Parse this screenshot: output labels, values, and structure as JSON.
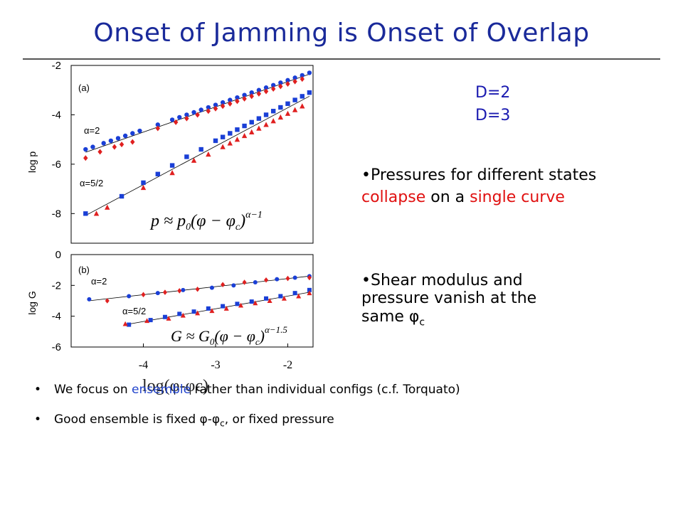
{
  "slide": {
    "title": "Onset of Jamming is Onset of Overlap",
    "legend": [
      {
        "label": "D=2",
        "color": "#1a1ab0"
      },
      {
        "label": "D=3",
        "color": "#1a1ab0"
      }
    ],
    "bullet1": {
      "p1": "•Pressures for different states ",
      "collapse": "collapse",
      "p2": " on a ",
      "single": "single curve"
    },
    "bullet2": {
      "line1": "•Shear modulus and",
      "line2": "pressure vanish at the",
      "line3": "same ",
      "phi": "φ",
      "sub": "c"
    },
    "bottom1": {
      "dot": "•",
      "pre": "We focus on ",
      "ensemble": "ensemble",
      "post": " rather than individual configs (c.f. Torquato)"
    },
    "bottom2": {
      "dot": "•",
      "pre": "Good ensemble is fixed ",
      "phi1": "φ",
      "dash": "-",
      "phi2": "φ",
      "sub": "c",
      "post": ", or fixed pressure"
    }
  },
  "chart_data": [
    {
      "type": "scatter",
      "panel": "(a)",
      "ylabel": "log p",
      "xlim": [
        -5.0,
        -1.65
      ],
      "ylim": [
        -9.2,
        -2.0
      ],
      "yticks": [
        "-2",
        "-4",
        "-6",
        "-8"
      ],
      "annotations": [
        "α=2",
        "α=5/2"
      ],
      "equation": "p ≈ p0(φ − φc)^(α−1)",
      "series": [
        {
          "name": "D=2",
          "group": "α=2",
          "marker": "circle",
          "color": "#1a3fd6",
          "x": [
            -4.8,
            -4.7,
            -4.55,
            -4.45,
            -4.35,
            -4.25,
            -4.15,
            -4.05,
            -3.8,
            -3.6,
            -3.5,
            -3.4,
            -3.3,
            -3.2,
            -3.1,
            -3.0,
            -2.9,
            -2.8,
            -2.7,
            -2.6,
            -2.5,
            -2.4,
            -2.3,
            -2.2,
            -2.1,
            -2.0,
            -1.9,
            -1.8,
            -1.7
          ],
          "y": [
            -5.4,
            -5.3,
            -5.15,
            -5.05,
            -4.95,
            -4.85,
            -4.75,
            -4.65,
            -4.4,
            -4.2,
            -4.1,
            -4.0,
            -3.9,
            -3.8,
            -3.7,
            -3.6,
            -3.5,
            -3.4,
            -3.3,
            -3.2,
            -3.1,
            -3.0,
            -2.9,
            -2.8,
            -2.7,
            -2.6,
            -2.5,
            -2.4,
            -2.3
          ]
        },
        {
          "name": "D=3",
          "group": "α=2",
          "marker": "diamond",
          "color": "#e02020",
          "x": [
            -4.8,
            -4.6,
            -4.4,
            -4.3,
            -4.15,
            -3.8,
            -3.55,
            -3.4,
            -3.25,
            -3.1,
            -3.0,
            -2.9,
            -2.8,
            -2.7,
            -2.6,
            -2.5,
            -2.4,
            -2.3,
            -2.2,
            -2.1,
            -2.0,
            -1.9,
            -1.8
          ],
          "y": [
            -5.75,
            -5.5,
            -5.3,
            -5.2,
            -5.1,
            -4.55,
            -4.3,
            -4.15,
            -4.0,
            -3.85,
            -3.75,
            -3.65,
            -3.55,
            -3.45,
            -3.35,
            -3.25,
            -3.15,
            -3.05,
            -2.95,
            -2.85,
            -2.75,
            -2.65,
            -2.55
          ]
        },
        {
          "name": "D=2",
          "group": "α=5/2",
          "marker": "square",
          "color": "#1a3fd6",
          "x": [
            -4.8,
            -4.3,
            -4.0,
            -3.8,
            -3.6,
            -3.4,
            -3.2,
            -3.0,
            -2.9,
            -2.8,
            -2.7,
            -2.6,
            -2.5,
            -2.4,
            -2.3,
            -2.2,
            -2.1,
            -2.0,
            -1.9,
            -1.8,
            -1.7
          ],
          "y": [
            -8.0,
            -7.3,
            -6.75,
            -6.4,
            -6.05,
            -5.7,
            -5.4,
            -5.05,
            -4.9,
            -4.75,
            -4.6,
            -4.45,
            -4.3,
            -4.15,
            -4.0,
            -3.85,
            -3.7,
            -3.55,
            -3.4,
            -3.25,
            -3.1
          ]
        },
        {
          "name": "D=3",
          "group": "α=5/2",
          "marker": "triangle",
          "color": "#e02020",
          "x": [
            -4.65,
            -4.5,
            -4.0,
            -3.6,
            -3.3,
            -3.1,
            -2.9,
            -2.8,
            -2.7,
            -2.6,
            -2.5,
            -2.4,
            -2.3,
            -2.2,
            -2.1,
            -2.0,
            -1.9,
            -1.8
          ],
          "y": [
            -8.0,
            -7.75,
            -6.95,
            -6.35,
            -5.85,
            -5.6,
            -5.3,
            -5.15,
            -5.0,
            -4.85,
            -4.7,
            -4.55,
            -4.4,
            -4.25,
            -4.1,
            -3.95,
            -3.8,
            -3.65
          ]
        }
      ]
    },
    {
      "type": "scatter",
      "panel": "(b)",
      "ylabel": "log G",
      "xlabel": "log(φ-φc)",
      "xlim": [
        -5.0,
        -1.65
      ],
      "ylim": [
        -6.0,
        0.0
      ],
      "xticks": [
        "-4",
        "-3",
        "-2"
      ],
      "yticks": [
        "0",
        "-2",
        "-4",
        "-6"
      ],
      "annotations": [
        "α=2",
        "α=5/2"
      ],
      "equation": "G ≈ G0(φ − φc)^(α−1.5)",
      "series": [
        {
          "name": "D=2",
          "group": "α=2",
          "marker": "circle",
          "color": "#1a3fd6",
          "x": [
            -4.75,
            -4.2,
            -3.8,
            -3.45,
            -3.05,
            -2.75,
            -2.45,
            -2.15,
            -1.9,
            -1.7
          ],
          "y": [
            -2.9,
            -2.7,
            -2.5,
            -2.3,
            -2.15,
            -2.0,
            -1.8,
            -1.6,
            -1.5,
            -1.4
          ]
        },
        {
          "name": "D=3",
          "group": "α=2",
          "marker": "diamond",
          "color": "#e02020",
          "x": [
            -4.5,
            -4.0,
            -3.7,
            -3.5,
            -3.25,
            -2.9,
            -2.6,
            -2.3,
            -2.0,
            -1.7
          ],
          "y": [
            -3.0,
            -2.6,
            -2.45,
            -2.35,
            -2.25,
            -1.95,
            -1.8,
            -1.65,
            -1.55,
            -1.5
          ]
        },
        {
          "name": "D=2",
          "group": "α=5/2",
          "marker": "square",
          "color": "#1a3fd6",
          "x": [
            -4.2,
            -3.9,
            -3.7,
            -3.5,
            -3.3,
            -3.1,
            -2.9,
            -2.7,
            -2.5,
            -2.3,
            -2.1,
            -1.9,
            -1.7
          ],
          "y": [
            -4.55,
            -4.25,
            -4.05,
            -3.85,
            -3.7,
            -3.5,
            -3.35,
            -3.2,
            -3.05,
            -2.85,
            -2.7,
            -2.5,
            -2.3
          ]
        },
        {
          "name": "D=3",
          "group": "α=5/2",
          "marker": "triangle",
          "color": "#e02020",
          "x": [
            -4.25,
            -3.95,
            -3.65,
            -3.45,
            -3.25,
            -3.05,
            -2.85,
            -2.65,
            -2.45,
            -2.25,
            -2.05,
            -1.85,
            -1.7
          ],
          "y": [
            -4.5,
            -4.3,
            -4.15,
            -3.95,
            -3.8,
            -3.65,
            -3.5,
            -3.3,
            -3.15,
            -3.0,
            -2.85,
            -2.7,
            -2.5
          ]
        }
      ]
    }
  ]
}
